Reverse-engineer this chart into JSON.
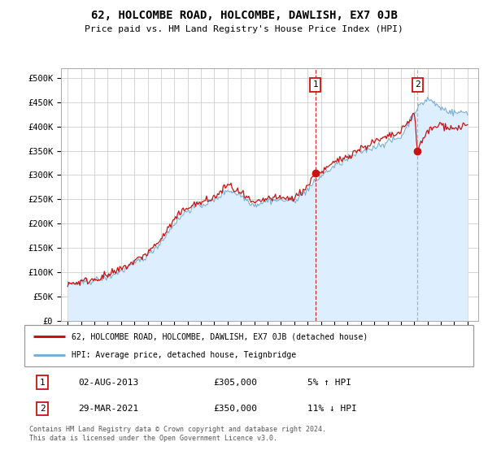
{
  "title": "62, HOLCOMBE ROAD, HOLCOMBE, DAWLISH, EX7 0JB",
  "subtitle": "Price paid vs. HM Land Registry's House Price Index (HPI)",
  "ylim": [
    0,
    520000
  ],
  "yticks": [
    0,
    50000,
    100000,
    150000,
    200000,
    250000,
    300000,
    350000,
    400000,
    450000,
    500000
  ],
  "ytick_labels": [
    "£0",
    "£50K",
    "£100K",
    "£150K",
    "£200K",
    "£250K",
    "£300K",
    "£350K",
    "£400K",
    "£450K",
    "£500K"
  ],
  "xlim_start": 1994.5,
  "xlim_end": 2025.8,
  "xticks": [
    1995,
    1996,
    1997,
    1998,
    1999,
    2000,
    2001,
    2002,
    2003,
    2004,
    2005,
    2006,
    2007,
    2008,
    2009,
    2010,
    2011,
    2012,
    2013,
    2014,
    2015,
    2016,
    2017,
    2018,
    2019,
    2020,
    2021,
    2022,
    2023,
    2024,
    2025
  ],
  "hpi_color": "#7aaed4",
  "hpi_fill_color": "#ddeeff",
  "price_color": "#cc1111",
  "grid_color": "#cccccc",
  "bg_color": "#ffffff",
  "sale1_x": 2013.583,
  "sale1_y": 305000,
  "sale1_vline_color": "#cc1111",
  "sale1_vline_style": "--",
  "sale2_x": 2021.247,
  "sale2_y": 350000,
  "sale2_vline_color": "#aaaaaa",
  "sale2_vline_style": "--",
  "legend_line1": "62, HOLCOMBE ROAD, HOLCOMBE, DAWLISH, EX7 0JB (detached house)",
  "legend_line2": "HPI: Average price, detached house, Teignbridge",
  "table_row1_num": "1",
  "table_row1_date": "02-AUG-2013",
  "table_row1_price": "£305,000",
  "table_row1_hpi": "5% ↑ HPI",
  "table_row2_num": "2",
  "table_row2_date": "29-MAR-2021",
  "table_row2_price": "£350,000",
  "table_row2_hpi": "11% ↓ HPI",
  "footnote": "Contains HM Land Registry data © Crown copyright and database right 2024.\nThis data is licensed under the Open Government Licence v3.0."
}
